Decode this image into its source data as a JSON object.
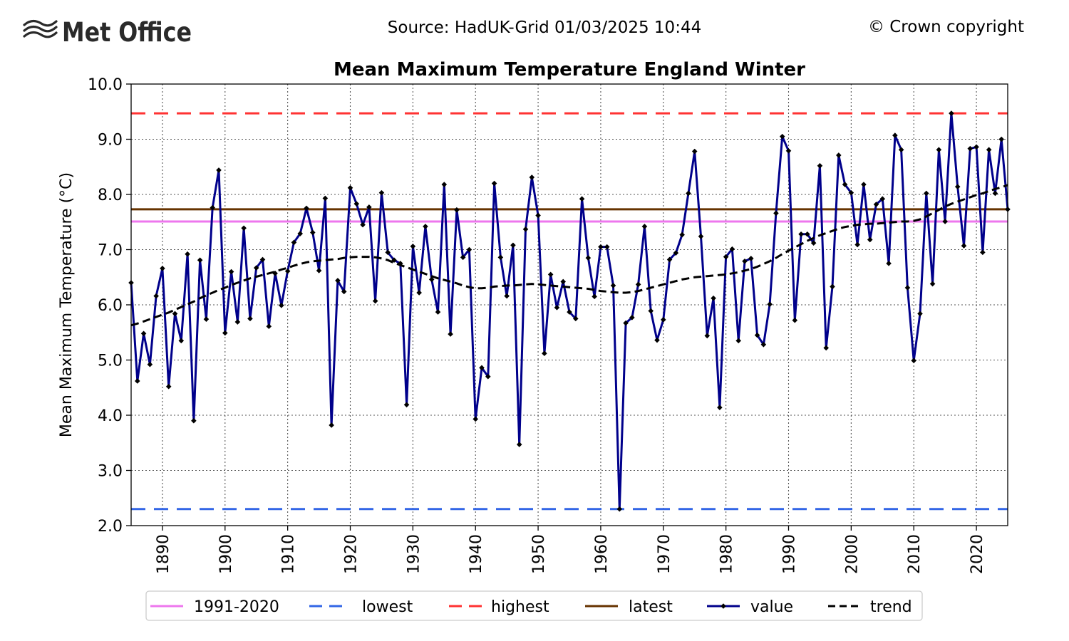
{
  "header": {
    "logo_text": "Met Office",
    "source": "Source: HadUK-Grid 01/03/2025 10:44",
    "copyright": "© Crown copyright"
  },
  "colors": {
    "value": "#00008B",
    "trend": "#000000",
    "highest": "#FF3333",
    "lowest": "#3366E6",
    "latest": "#663300",
    "baseline": "#EE77EE",
    "grid": "#555555"
  },
  "chart_data": {
    "type": "line",
    "title": "Mean Maximum Temperature England Winter",
    "xlabel": "",
    "ylabel": "Mean Maximum Temperature (°C)",
    "xlim": [
      1885,
      2025
    ],
    "ylim": [
      2.0,
      10.0
    ],
    "x_ticks": [
      1890,
      1900,
      1910,
      1920,
      1930,
      1940,
      1950,
      1960,
      1970,
      1980,
      1990,
      2000,
      2010,
      2020
    ],
    "x_tick_labels": [
      "1890",
      "1900",
      "1910",
      "1920",
      "1930",
      "1940",
      "1950",
      "1960",
      "1970",
      "1980",
      "1990",
      "2000",
      "2010",
      "2020"
    ],
    "y_ticks": [
      2.0,
      3.0,
      4.0,
      5.0,
      6.0,
      7.0,
      8.0,
      9.0,
      10.0
    ],
    "y_tick_labels": [
      "2.0",
      "3.0",
      "4.0",
      "5.0",
      "6.0",
      "7.0",
      "8.0",
      "9.0",
      "10.0"
    ],
    "grid": true,
    "legend_position": "bottom",
    "x": [
      1885,
      1886,
      1887,
      1888,
      1889,
      1890,
      1891,
      1892,
      1893,
      1894,
      1895,
      1896,
      1897,
      1898,
      1899,
      1900,
      1901,
      1902,
      1903,
      1904,
      1905,
      1906,
      1907,
      1908,
      1909,
      1910,
      1911,
      1912,
      1913,
      1914,
      1915,
      1916,
      1917,
      1918,
      1919,
      1920,
      1921,
      1922,
      1923,
      1924,
      1925,
      1926,
      1927,
      1928,
      1929,
      1930,
      1931,
      1932,
      1933,
      1934,
      1935,
      1936,
      1937,
      1938,
      1939,
      1940,
      1941,
      1942,
      1943,
      1944,
      1945,
      1946,
      1947,
      1948,
      1949,
      1950,
      1951,
      1952,
      1953,
      1954,
      1955,
      1956,
      1957,
      1958,
      1959,
      1960,
      1961,
      1962,
      1963,
      1964,
      1965,
      1966,
      1967,
      1968,
      1969,
      1970,
      1971,
      1972,
      1973,
      1974,
      1975,
      1976,
      1977,
      1978,
      1979,
      1980,
      1981,
      1982,
      1983,
      1984,
      1985,
      1986,
      1987,
      1988,
      1989,
      1990,
      1991,
      1992,
      1993,
      1994,
      1995,
      1996,
      1997,
      1998,
      1999,
      2000,
      2001,
      2002,
      2003,
      2004,
      2005,
      2006,
      2007,
      2008,
      2009,
      2010,
      2011,
      2012,
      2013,
      2014,
      2015,
      2016,
      2017,
      2018,
      2019,
      2020,
      2021,
      2022,
      2023,
      2024,
      2025
    ],
    "series": [
      {
        "name": "value",
        "style": "line-with-diamond-markers",
        "values": [
          6.4,
          4.62,
          5.48,
          4.92,
          6.16,
          6.66,
          4.52,
          5.84,
          5.35,
          6.92,
          3.9,
          6.81,
          5.74,
          7.76,
          8.44,
          5.49,
          6.6,
          5.69,
          7.39,
          5.75,
          6.67,
          6.82,
          5.61,
          6.57,
          5.99,
          6.61,
          7.13,
          7.29,
          7.75,
          7.31,
          6.62,
          7.93,
          3.82,
          6.44,
          6.24,
          8.12,
          7.83,
          7.45,
          7.77,
          6.07,
          8.03,
          6.95,
          6.81,
          6.75,
          4.19,
          7.06,
          6.22,
          7.42,
          6.46,
          5.87,
          8.18,
          5.47,
          7.72,
          6.86,
          7.0,
          3.93,
          4.86,
          4.7,
          8.2,
          6.86,
          6.16,
          7.08,
          3.47,
          7.37,
          8.31,
          7.62,
          5.12,
          6.55,
          5.95,
          6.42,
          5.87,
          5.75,
          7.92,
          6.85,
          6.15,
          7.05,
          7.05,
          6.35,
          2.3,
          5.67,
          5.77,
          6.37,
          7.42,
          5.89,
          5.36,
          5.73,
          6.82,
          6.94,
          7.27,
          8.02,
          8.78,
          7.24,
          5.44,
          6.12,
          4.14,
          6.87,
          7.01,
          5.35,
          6.79,
          6.84,
          5.45,
          5.28,
          6.01,
          7.66,
          9.05,
          8.79,
          5.72,
          7.28,
          7.28,
          7.12,
          8.52,
          5.22,
          6.33,
          8.71,
          8.18,
          8.03,
          7.09,
          8.18,
          7.18,
          7.82,
          7.92,
          6.75,
          9.07,
          8.81,
          6.31,
          4.99,
          5.84,
          8.02,
          6.38,
          8.81,
          7.51,
          9.47,
          8.14,
          7.07,
          8.83,
          8.86,
          6.95,
          8.81,
          8.02,
          9.0,
          7.73
        ]
      },
      {
        "name": "trend",
        "style": "dashed",
        "values": [
          5.63,
          5.66,
          5.7,
          5.74,
          5.78,
          5.82,
          5.86,
          5.91,
          5.96,
          6.01,
          6.06,
          6.12,
          6.17,
          6.22,
          6.27,
          6.31,
          6.36,
          6.4,
          6.44,
          6.48,
          6.51,
          6.54,
          6.57,
          6.6,
          6.64,
          6.67,
          6.71,
          6.74,
          6.77,
          6.79,
          6.8,
          6.81,
          6.82,
          6.83,
          6.85,
          6.86,
          6.87,
          6.87,
          6.87,
          6.86,
          6.84,
          6.81,
          6.76,
          6.72,
          6.68,
          6.64,
          6.6,
          6.56,
          6.52,
          6.48,
          6.45,
          6.42,
          6.39,
          6.35,
          6.32,
          6.3,
          6.3,
          6.31,
          6.33,
          6.34,
          6.35,
          6.35,
          6.36,
          6.37,
          6.38,
          6.37,
          6.36,
          6.35,
          6.34,
          6.33,
          6.32,
          6.31,
          6.3,
          6.29,
          6.27,
          6.25,
          6.24,
          6.23,
          6.22,
          6.22,
          6.23,
          6.25,
          6.28,
          6.31,
          6.34,
          6.37,
          6.4,
          6.43,
          6.46,
          6.48,
          6.5,
          6.51,
          6.52,
          6.53,
          6.54,
          6.55,
          6.57,
          6.59,
          6.62,
          6.65,
          6.69,
          6.74,
          6.79,
          6.85,
          6.92,
          6.98,
          7.04,
          7.1,
          7.16,
          7.21,
          7.26,
          7.3,
          7.34,
          7.38,
          7.41,
          7.43,
          7.45,
          7.46,
          7.47,
          7.47,
          7.48,
          7.49,
          7.5,
          7.51,
          7.51,
          7.52,
          7.55,
          7.6,
          7.66,
          7.72,
          7.78,
          7.83,
          7.87,
          7.91,
          7.95,
          7.99,
          8.02,
          8.06,
          8.1,
          8.13,
          8.17
        ]
      }
    ],
    "reference_lines": [
      {
        "name": "1991-2020",
        "value": 7.51,
        "style": "solid"
      },
      {
        "name": "lowest",
        "value": 2.3,
        "style": "dashed"
      },
      {
        "name": "highest",
        "value": 9.47,
        "style": "dashed"
      },
      {
        "name": "latest",
        "value": 7.73,
        "style": "solid"
      }
    ],
    "legend": [
      "1991-2020",
      "lowest",
      "highest",
      "latest",
      "value",
      "trend"
    ]
  }
}
